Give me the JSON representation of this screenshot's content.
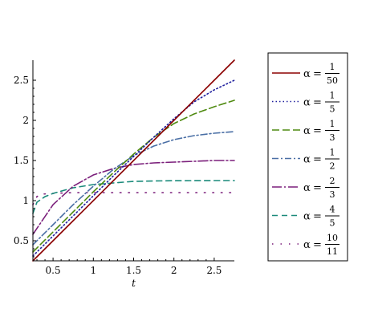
{
  "chart_data": {
    "type": "line",
    "title": "",
    "xlabel": "t",
    "ylabel": "",
    "xlim": [
      0.25,
      2.75
    ],
    "ylim": [
      0.25,
      2.75
    ],
    "x_ticks": [
      "0.5",
      "1",
      "1.5",
      "2",
      "2.5"
    ],
    "y_ticks": [
      "0.5",
      "1",
      "1.5",
      "2",
      "2.5"
    ],
    "grid": false,
    "legend_position": "right",
    "legend_symbol": "α",
    "legend_equals": "=",
    "series": [
      {
        "name": "α = 1/50",
        "num": "1",
        "den": "50",
        "color": "#8B0000",
        "dash": "solid",
        "x": [
          0.25,
          0.5,
          0.75,
          1.0,
          1.25,
          1.5,
          1.75,
          2.0,
          2.25,
          2.5,
          2.75
        ],
        "y": [
          0.25,
          0.5,
          0.75,
          1.0,
          1.25,
          1.5,
          1.75,
          2.0,
          2.25,
          2.5,
          2.75
        ]
      },
      {
        "name": "α = 1/5",
        "num": "1",
        "den": "5",
        "color": "#1F1F9E",
        "dash": "dot",
        "x": [
          0.25,
          0.5,
          0.75,
          1.0,
          1.25,
          1.5,
          1.75,
          2.0,
          2.25,
          2.5,
          2.75
        ],
        "y": [
          0.31,
          0.56,
          0.81,
          1.06,
          1.31,
          1.55,
          1.79,
          2.02,
          2.23,
          2.38,
          2.5
        ]
      },
      {
        "name": "α = 1/3",
        "num": "1",
        "den": "3",
        "color": "#4F8A10",
        "dash": "longdash",
        "x": [
          0.25,
          0.5,
          0.75,
          1.0,
          1.25,
          1.5,
          1.75,
          2.0,
          2.25,
          2.5,
          2.75
        ],
        "y": [
          0.36,
          0.61,
          0.86,
          1.11,
          1.35,
          1.58,
          1.79,
          1.96,
          2.08,
          2.17,
          2.25
        ]
      },
      {
        "name": "α = 1/2",
        "num": "1",
        "den": "2",
        "color": "#4A6FA5",
        "dash": "dashdot",
        "x": [
          0.25,
          0.5,
          0.75,
          1.0,
          1.25,
          1.5,
          1.75,
          2.0,
          2.25,
          2.5,
          2.75
        ],
        "y": [
          0.45,
          0.7,
          0.95,
          1.18,
          1.39,
          1.56,
          1.68,
          1.76,
          1.81,
          1.84,
          1.86
        ]
      },
      {
        "name": "α = 2/3",
        "num": "2",
        "den": "3",
        "color": "#7B1F7B",
        "dash": "longdashdot",
        "x": [
          0.25,
          0.5,
          0.75,
          1.0,
          1.25,
          1.5,
          1.75,
          2.0,
          2.25,
          2.5,
          2.75
        ],
        "y": [
          0.58,
          0.95,
          1.18,
          1.32,
          1.4,
          1.45,
          1.47,
          1.48,
          1.49,
          1.5,
          1.5
        ]
      },
      {
        "name": "α = 4/5",
        "num": "4",
        "den": "5",
        "color": "#1A8A7A",
        "dash": "dash",
        "x": [
          0.25,
          0.3,
          0.4,
          0.5,
          0.75,
          1.0,
          1.25,
          1.5,
          1.75,
          2.0,
          2.5,
          2.75
        ],
        "y": [
          0.84,
          0.98,
          1.05,
          1.09,
          1.16,
          1.2,
          1.22,
          1.24,
          1.245,
          1.248,
          1.25,
          1.25
        ]
      },
      {
        "name": "α = 10/11",
        "num": "10",
        "den": "11",
        "color": "#7B1F7B",
        "dash": "spaced",
        "x": [
          0.25,
          0.3,
          0.35,
          0.5,
          0.75,
          1.0,
          1.5,
          2.0,
          2.5,
          2.75
        ],
        "y": [
          0.95,
          1.05,
          1.08,
          1.09,
          1.1,
          1.1,
          1.1,
          1.1,
          1.1,
          1.1
        ]
      }
    ]
  }
}
